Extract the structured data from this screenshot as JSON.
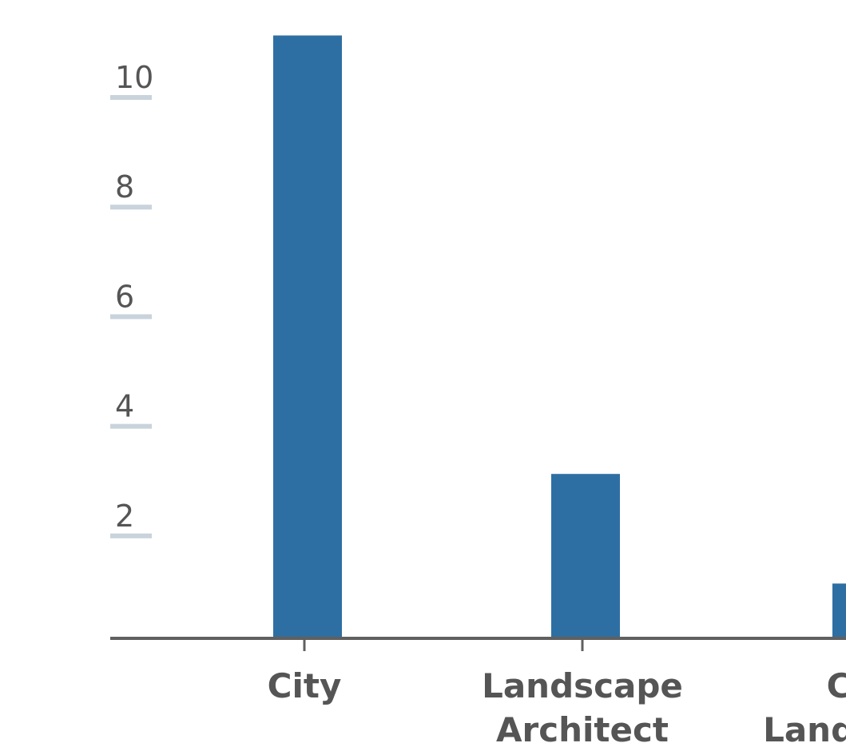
{
  "chart_data": {
    "type": "bar",
    "categories": [
      [
        "City"
      ],
      [
        "Landscape",
        "Architect"
      ],
      [
        "City",
        "Landscape"
      ]
    ],
    "values": [
      11,
      3,
      1
    ],
    "yticks": [
      2,
      4,
      6,
      8,
      10
    ],
    "ytick_labels": [
      "2",
      "4",
      "6",
      "8",
      "10"
    ],
    "ylim": [
      0,
      11
    ],
    "grid": false,
    "colors": {
      "bar": "#2e6fa3",
      "axis": "#606060",
      "tick_mark": "#c9d3dc",
      "text": "#555555"
    }
  }
}
